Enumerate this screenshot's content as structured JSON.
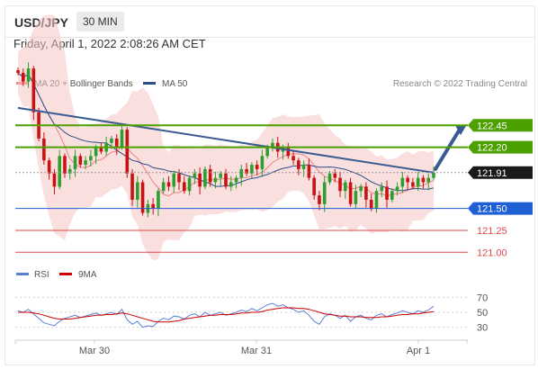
{
  "header": {
    "symbol": "USD/JPY",
    "timeframe": "30 MIN"
  },
  "timestamp": "Friday, April 1, 2022 2:08:26 AM CET",
  "legend": {
    "ma20": {
      "label": "MA 20 + Bollinger Bands",
      "color": "#f08080"
    },
    "ma50": {
      "label": "MA 50",
      "color": "#2a4f8a"
    },
    "credit": "Research © 2022 Trading Central"
  },
  "rsi_legend": {
    "rsi": {
      "label": "RSI",
      "color": "#5b7fd4"
    },
    "ma9": {
      "label": "9MA",
      "color": "#cc0000"
    }
  },
  "x_labels": [
    "Mar 30",
    "Mar 31",
    "Apr 1"
  ],
  "colors": {
    "up": "#2e9e2e",
    "down": "#cc1111",
    "resistance": "#4ca000",
    "support": "#1f5fd6",
    "target_support": "#e04a4a",
    "trend": "#3a5a92",
    "bands": "#f6c5c5",
    "current": "#1a1a1a"
  },
  "chart_data": [
    {
      "type": "candlestick",
      "title": "USD/JPY 30 MIN",
      "y_range": [
        120.9,
        122.7
      ],
      "levels": [
        {
          "label": "122.45",
          "value": 122.45,
          "kind": "resistance"
        },
        {
          "label": "122.20",
          "value": 122.2,
          "kind": "resistance"
        },
        {
          "label": "121.91",
          "value": 121.91,
          "kind": "current"
        },
        {
          "label": "121.50",
          "value": 121.5,
          "kind": "support"
        },
        {
          "label": "121.25",
          "value": 121.25,
          "kind": "target_support"
        },
        {
          "label": "121.00",
          "value": 121.0,
          "kind": "target_support"
        }
      ],
      "closes": [
        123.05,
        122.95,
        123.1,
        122.6,
        122.3,
        122.05,
        121.9,
        121.75,
        122.1,
        121.9,
        121.95,
        122.1,
        122.0,
        122.05,
        122.1,
        122.2,
        122.15,
        122.25,
        122.3,
        122.2,
        122.4,
        121.9,
        121.6,
        121.8,
        121.45,
        121.55,
        121.5,
        121.7,
        121.8,
        121.75,
        121.9,
        121.8,
        121.7,
        121.85,
        121.9,
        121.75,
        121.95,
        121.8,
        121.85,
        121.9,
        121.75,
        121.8,
        121.85,
        121.95,
        121.9,
        122.0,
        121.95,
        122.1,
        122.2,
        122.25,
        122.15,
        122.2,
        122.1,
        122.05,
        121.95,
        122.0,
        121.85,
        121.65,
        121.55,
        121.8,
        121.9,
        121.85,
        121.7,
        121.8,
        121.55,
        121.7,
        121.75,
        121.6,
        121.5,
        121.7,
        121.75,
        121.6,
        121.7,
        121.75,
        121.85,
        121.8,
        121.75,
        121.85,
        121.8,
        121.85,
        121.91
      ],
      "trend_line": [
        [
          0,
          122.65
        ],
        [
          80,
          121.91
        ]
      ],
      "projection": {
        "from": 121.95,
        "to": 122.45
      }
    },
    {
      "type": "line",
      "title": "RSI",
      "y_range": [
        20,
        80
      ],
      "y_ticks": [
        70,
        50,
        30
      ],
      "series": [
        {
          "name": "RSI",
          "values": [
            52,
            50,
            54,
            48,
            42,
            36,
            34,
            32,
            38,
            42,
            44,
            46,
            43,
            45,
            47,
            49,
            46,
            48,
            50,
            47,
            54,
            40,
            34,
            38,
            30,
            32,
            31,
            38,
            42,
            40,
            45,
            44,
            41,
            46,
            48,
            44,
            50,
            46,
            48,
            50,
            46,
            48,
            50,
            53,
            51,
            55,
            52,
            56,
            60,
            62,
            58,
            60,
            56,
            54,
            50,
            52,
            46,
            38,
            34,
            44,
            48,
            46,
            42,
            46,
            38,
            44,
            46,
            42,
            40,
            46,
            48,
            44,
            47,
            49,
            52,
            50,
            48,
            52,
            50,
            53,
            58
          ]
        },
        {
          "name": "9MA",
          "values": [
            50,
            50,
            50,
            49,
            48,
            46,
            44,
            42,
            41,
            41,
            41,
            42,
            43,
            44,
            45,
            46,
            46,
            47,
            47,
            48,
            49,
            48,
            46,
            44,
            42,
            40,
            38,
            37,
            37,
            37,
            38,
            39,
            41,
            42,
            43,
            44,
            45,
            46,
            46,
            47,
            47,
            47,
            48,
            49,
            49,
            50,
            50,
            51,
            53,
            54,
            55,
            56,
            56,
            56,
            55,
            55,
            54,
            52,
            50,
            48,
            47,
            46,
            45,
            45,
            44,
            44,
            44,
            43,
            43,
            43,
            44,
            44,
            45,
            46,
            47,
            47,
            48,
            48,
            49,
            50,
            51
          ]
        }
      ]
    }
  ]
}
